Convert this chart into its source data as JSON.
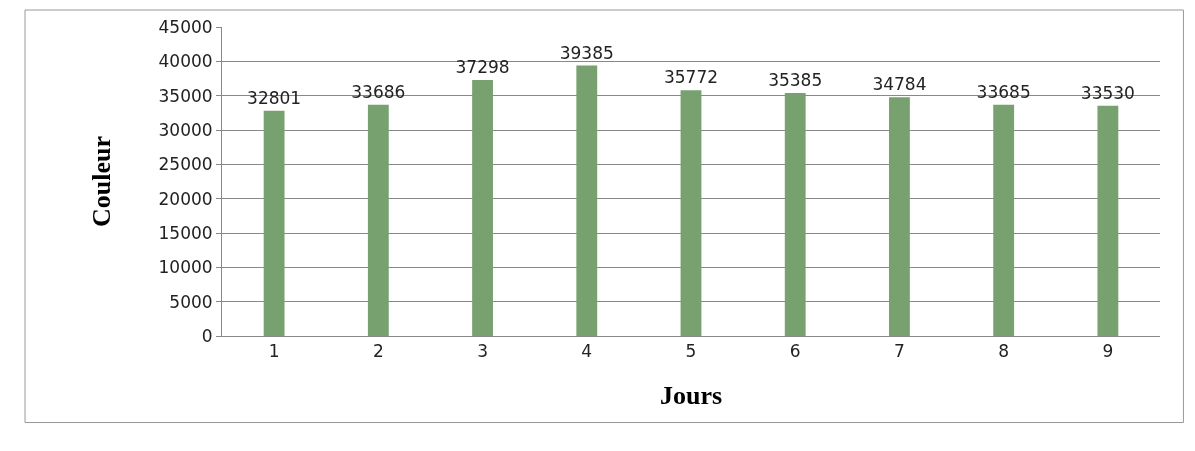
{
  "chart_data": {
    "type": "bar",
    "xlabel": "Jours",
    "ylabel": "Couleur",
    "categories": [
      "1",
      "2",
      "3",
      "4",
      "5",
      "6",
      "7",
      "8",
      "9"
    ],
    "values": [
      32801,
      33686,
      37298,
      39385,
      35772,
      35385,
      34784,
      33685,
      33530
    ],
    "color": "#77a26f",
    "ylim": [
      0,
      45000
    ],
    "yticks": [
      0,
      5000,
      10000,
      15000,
      20000,
      25000,
      30000,
      35000,
      40000,
      45000
    ],
    "grid": "y",
    "data_labels": true
  }
}
